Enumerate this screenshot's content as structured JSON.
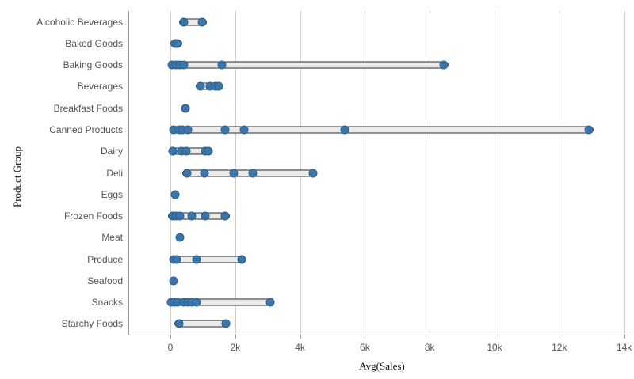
{
  "chart_data": {
    "type": "scatter",
    "subtype": "distribution-plot",
    "orientation": "horizontal",
    "title": "",
    "xlabel": "Avg(Sales)",
    "ylabel": "Product Group",
    "x_axis": {
      "tick_labels": [
        "0",
        "2k",
        "4k",
        "6k",
        "8k",
        "10k",
        "12k",
        "14k"
      ],
      "tick_values": [
        0,
        2000,
        4000,
        6000,
        8000,
        10000,
        12000,
        14000
      ],
      "range": [
        -1300,
        14300
      ]
    },
    "grid": "vertical-gridlines-on",
    "legend": "none",
    "colors": {
      "point_fill": "#3b76ab",
      "point_border": "#2d618f",
      "range_bar_fill": "#ebebeb",
      "range_bar_border": "#2b2b2b",
      "gridline": "#cfcfcf",
      "axis_line": "#9b9b9b",
      "label_text": "#545454",
      "title_text": "#111111"
    },
    "groups": [
      {
        "label": "Alcoholic Beverages",
        "values": [
          410,
          990
        ]
      },
      {
        "label": "Baked Goods",
        "values": [
          140,
          230
        ]
      },
      {
        "label": "Baking Goods",
        "values": [
          50,
          170,
          290,
          420,
          1590,
          8440
        ]
      },
      {
        "label": "Beverages",
        "values": [
          920,
          1220,
          1390,
          1490
        ]
      },
      {
        "label": "Breakfast Foods",
        "values": [
          460
        ]
      },
      {
        "label": "Canned Products",
        "values": [
          100,
          260,
          370,
          530,
          1690,
          2270,
          5390,
          12920
        ]
      },
      {
        "label": "Dairy",
        "values": [
          80,
          340,
          490,
          1080,
          1170
        ]
      },
      {
        "label": "Deli",
        "values": [
          510,
          1040,
          1960,
          2540,
          4400
        ]
      },
      {
        "label": "Eggs",
        "values": [
          140
        ]
      },
      {
        "label": "Frozen Foods",
        "values": [
          70,
          180,
          290,
          650,
          1080,
          1690
        ]
      },
      {
        "label": "Meat",
        "values": [
          290
        ]
      },
      {
        "label": "Produce",
        "values": [
          110,
          200,
          810,
          2200
        ]
      },
      {
        "label": "Seafood",
        "values": [
          110
        ]
      },
      {
        "label": "Snacks",
        "values": [
          30,
          120,
          220,
          410,
          530,
          660,
          800,
          3080
        ]
      },
      {
        "label": "Starchy Foods",
        "values": [
          260,
          1710
        ]
      }
    ]
  }
}
